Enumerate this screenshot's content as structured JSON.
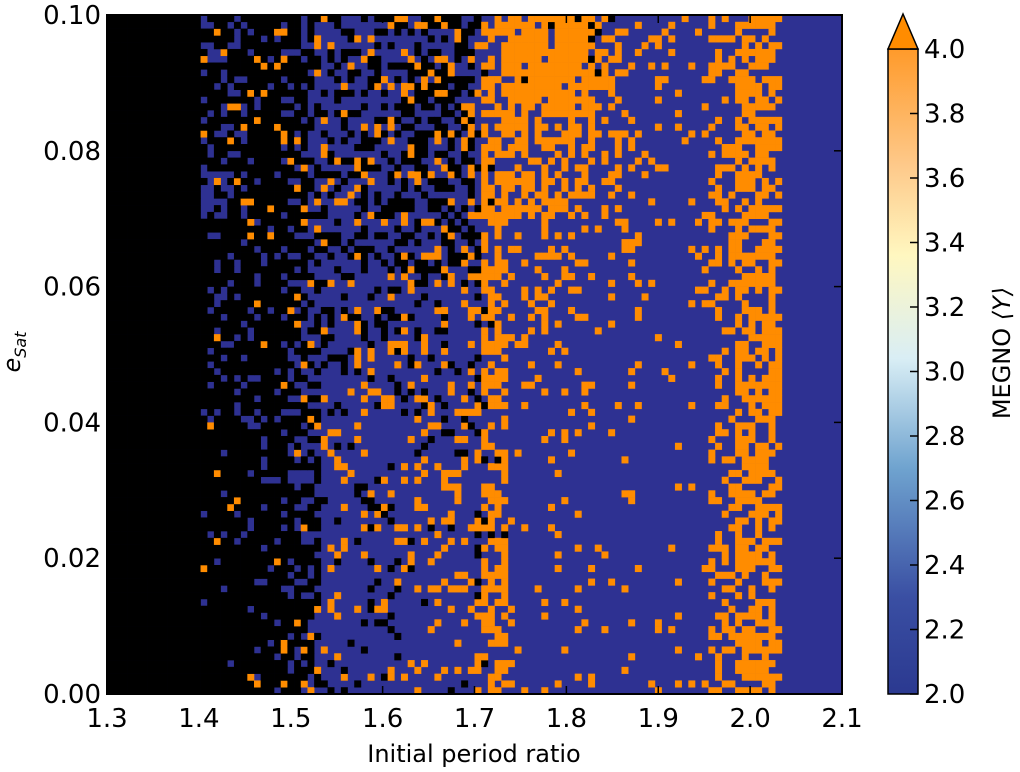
{
  "chart_data": {
    "type": "heatmap",
    "title": "",
    "xlabel": "Initial period ratio",
    "ylabel": "e_Sat",
    "ylabel_main": "e",
    "ylabel_sub": "Sat",
    "xlim": [
      1.3,
      2.1
    ],
    "ylim": [
      0.0,
      0.1
    ],
    "x_ticks": [
      "1.3",
      "1.4",
      "1.5",
      "1.6",
      "1.7",
      "1.8",
      "1.9",
      "2.0",
      "2.1"
    ],
    "y_ticks": [
      "0.00",
      "0.02",
      "0.04",
      "0.06",
      "0.08",
      "0.10"
    ],
    "grid": false,
    "colorbar": {
      "label": "MEGNO",
      "label_symbol": "⟨Y⟩",
      "range": [
        2.0,
        4.0
      ],
      "extend": "max",
      "ticks": [
        "2.0",
        "2.2",
        "2.4",
        "2.6",
        "2.8",
        "3.0",
        "3.2",
        "3.4",
        "3.6",
        "3.8",
        "4.0"
      ],
      "colors": [
        "#2b3990",
        "#3a4fa3",
        "#6fa3cf",
        "#cfe8f3",
        "#fffbd0",
        "#fed690",
        "#f9a85e",
        "#ff8c00"
      ]
    },
    "chaotic_color": "#000000",
    "regular_color": "#2e3192",
    "chaotic_value_color": "#ff8c00",
    "grid_resolution": {
      "nx": 110,
      "ny": 100
    },
    "regions": [
      {
        "description": "black (unstable/ejected) region",
        "x_range": [
          1.3,
          1.53
        ],
        "e_range": [
          0.0,
          0.1
        ],
        "color": "#000000"
      },
      {
        "description": "mixed chaotic/regular region",
        "x_range": [
          1.53,
          1.75
        ],
        "e_range": [
          0.0,
          0.1
        ]
      },
      {
        "description": "chaotic band near 1.8",
        "x_range": [
          1.76,
          1.85
        ],
        "e_range": [
          0.07,
          0.1
        ],
        "megno": 4.0
      },
      {
        "description": "chaotic band near 1.72",
        "x_range": [
          1.705,
          1.735
        ],
        "e_range": [
          0.0,
          0.1
        ],
        "megno": 4.0
      },
      {
        "description": "chaotic band near 2.0",
        "x_range": [
          1.96,
          2.03
        ],
        "e_range": [
          0.0,
          0.1
        ],
        "megno": 4.0
      },
      {
        "description": "regular region",
        "x_range": [
          2.03,
          2.1
        ],
        "e_range": [
          0.0,
          0.1
        ],
        "megno": 2.0
      }
    ]
  }
}
